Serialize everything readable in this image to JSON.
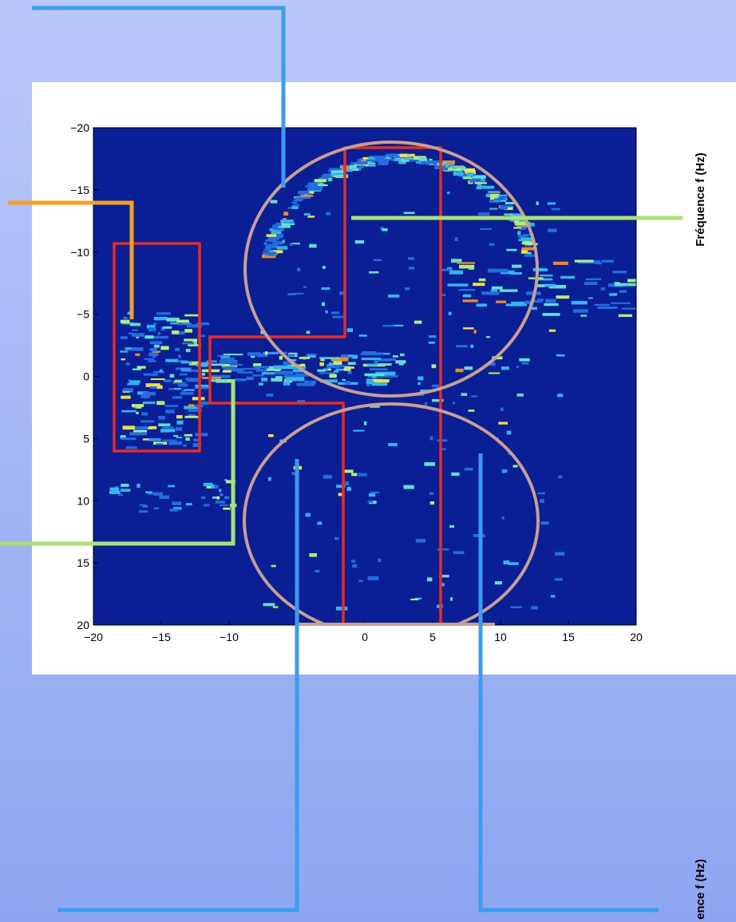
{
  "axes": {
    "xlim": [
      -20,
      20
    ],
    "ylim": [
      -20,
      20
    ],
    "xticks": [
      {
        "value": -20,
        "label": "−20"
      },
      {
        "value": -15,
        "label": "−15"
      },
      {
        "value": -10,
        "label": "−10"
      },
      0,
      5,
      10,
      15,
      20
    ],
    "yticks": [
      {
        "value": -20,
        "label": "−20"
      },
      {
        "value": -15,
        "label": "−15"
      },
      {
        "value": -10,
        "label": "−10"
      },
      {
        "value": -5,
        "label": "−5"
      },
      0,
      5,
      10,
      15,
      20
    ]
  },
  "side_labels": [
    "Fréquence  f (Hz)",
    "ence  f (Hz)"
  ]
}
